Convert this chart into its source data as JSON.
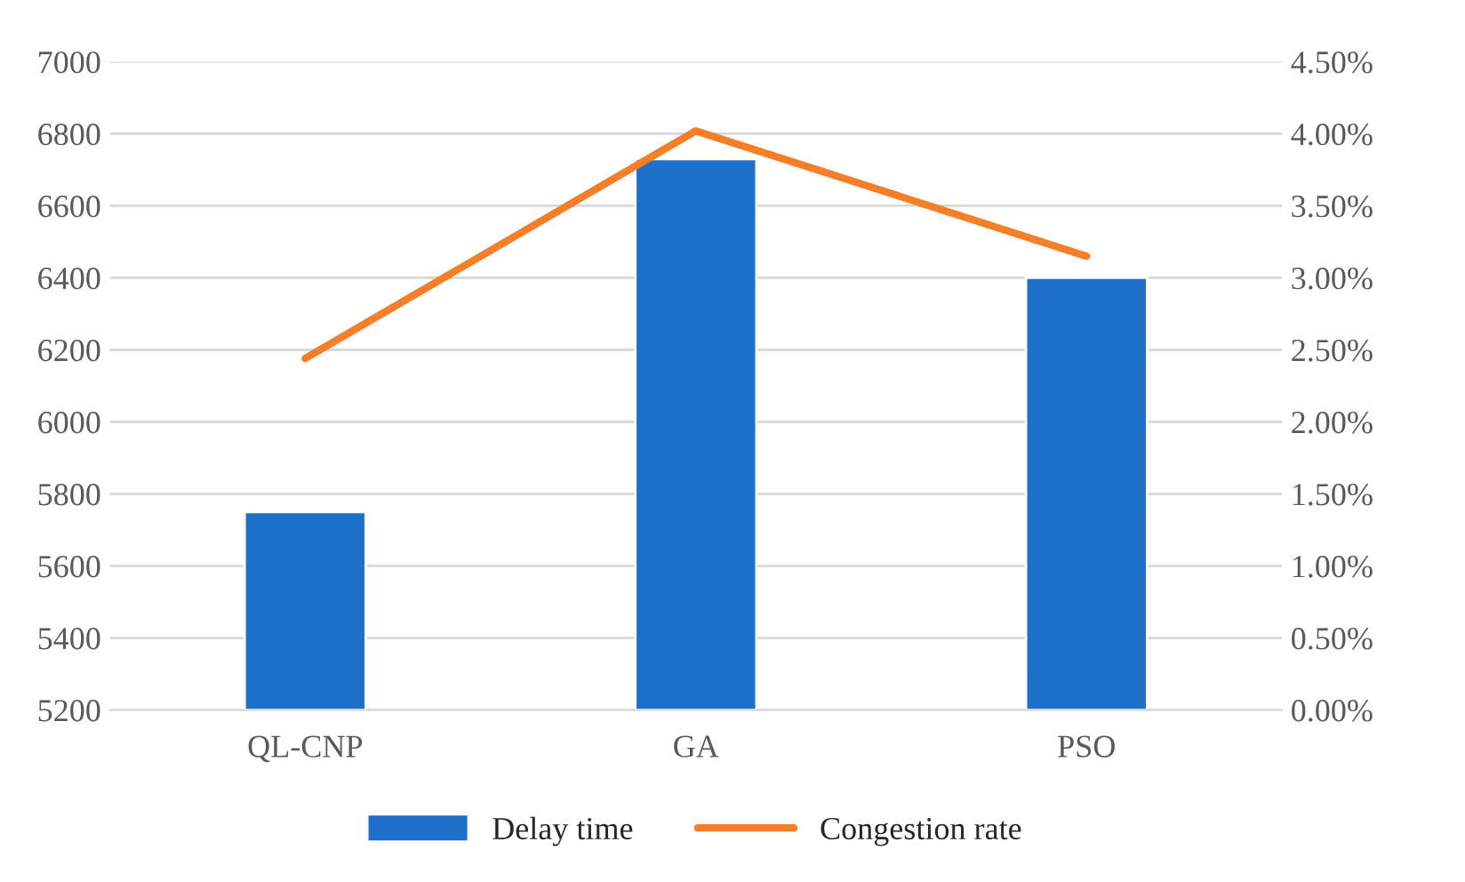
{
  "chart_data": {
    "type": "bar",
    "categories": [
      "QL-CNP",
      "GA",
      "PSO"
    ],
    "series": [
      {
        "name": "Delay time",
        "color": "#1f70c8",
        "values": [
          5750,
          6730,
          6400
        ]
      },
      {
        "name": "Congestion rate",
        "type": "line",
        "axis": "y2",
        "color": "#f57f29",
        "values": [
          2.44,
          4.02,
          3.15
        ]
      }
    ],
    "ylim": [
      5200,
      7000
    ],
    "yticks": [
      5200,
      5400,
      5600,
      5800,
      6000,
      6200,
      6400,
      6600,
      6800,
      7000
    ],
    "y2lim": [
      0,
      4.5
    ],
    "y2ticks": [
      {
        "value": 0,
        "label": "0.00%"
      },
      {
        "value": 0.5,
        "label": "0.50%"
      },
      {
        "value": 1,
        "label": "1.00%"
      },
      {
        "value": 1.5,
        "label": "1.50%"
      },
      {
        "value": 2,
        "label": "2.00%"
      },
      {
        "value": 2.5,
        "label": "2.50%"
      },
      {
        "value": 3,
        "label": "3.00%"
      },
      {
        "value": 3.5,
        "label": "3.50%"
      },
      {
        "value": 4,
        "label": "4.00%"
      },
      {
        "value": 4.5,
        "label": "4.50%"
      }
    ],
    "grid": "y",
    "legend": "bottom",
    "marker": "none",
    "line_style": "solid"
  }
}
